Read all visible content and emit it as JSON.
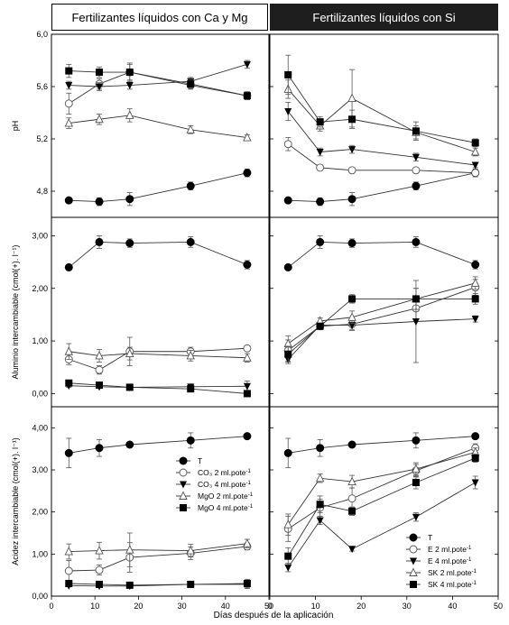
{
  "headers": {
    "left": "Fertilizantes líquidos con Ca y Mg",
    "right": "Fertilizantes líquidos con Si"
  },
  "colors": {
    "ink": "#000000",
    "header_dark": "#1e1e1e",
    "open_marker": "#ffffff"
  },
  "chart_data": [
    {
      "type": "line",
      "panel": "ph-left",
      "ylabel": "pH",
      "xlabel": "",
      "ylim": [
        4.6,
        6.0
      ],
      "xlim": [
        0,
        50
      ],
      "yticks": [
        "4,8",
        "5,2",
        "5,6",
        "6,0"
      ],
      "x": [
        4,
        11,
        18,
        32,
        45
      ],
      "series": [
        {
          "name": "T",
          "marker": "circle-filled",
          "values": [
            4.73,
            4.72,
            4.74,
            4.84,
            4.94
          ],
          "err": [
            0.02,
            0.03,
            0.05,
            0.03,
            0.03
          ]
        },
        {
          "name": "CO3 2 ml.pote-1",
          "marker": "circle-open",
          "values": [
            5.47,
            5.62,
            5.71,
            5.61,
            5.53
          ],
          "err": [
            0.08,
            0.04,
            0.06,
            0.03,
            0.03
          ]
        },
        {
          "name": "CO3 4 ml.pote-1",
          "marker": "triangle-down-filled",
          "values": [
            5.61,
            5.6,
            5.61,
            5.64,
            5.77
          ],
          "err": [
            0.03,
            0.03,
            0.03,
            0.03,
            0.03
          ]
        },
        {
          "name": "MgO 2 ml.pote-1",
          "marker": "triangle-up-open",
          "values": [
            5.32,
            5.35,
            5.38,
            5.27,
            5.21
          ],
          "err": [
            0.04,
            0.04,
            0.05,
            0.03,
            0.02
          ]
        },
        {
          "name": "MgO 4 ml.pote-1",
          "marker": "square-filled",
          "values": [
            5.72,
            5.71,
            5.71,
            5.62,
            5.53
          ],
          "err": [
            0.05,
            0.04,
            0.07,
            0.03,
            0.03
          ]
        }
      ]
    },
    {
      "type": "line",
      "panel": "ph-right",
      "ylabel": "",
      "xlabel": "",
      "ylim": [
        4.6,
        6.0
      ],
      "xlim": [
        0,
        50
      ],
      "x": [
        4,
        11,
        18,
        32,
        45
      ],
      "series": [
        {
          "name": "T",
          "marker": "circle-filled",
          "values": [
            4.73,
            4.72,
            4.74,
            4.84,
            4.94
          ],
          "err": [
            0.02,
            0.03,
            0.05,
            0.03,
            0.03
          ]
        },
        {
          "name": "E 2 ml.pote-1",
          "marker": "circle-open",
          "values": [
            5.16,
            4.98,
            4.96,
            4.96,
            4.94
          ],
          "err": [
            0.05,
            0.02,
            0.02,
            0.02,
            0.02
          ]
        },
        {
          "name": "E 4 ml.pote-1",
          "marker": "triangle-down-filled",
          "values": [
            5.41,
            5.1,
            5.12,
            5.06,
            5.0
          ],
          "err": [
            0.07,
            0.03,
            0.03,
            0.03,
            0.02
          ]
        },
        {
          "name": "SK 2 ml.pote-1",
          "marker": "triangle-up-open",
          "values": [
            5.58,
            5.3,
            5.51,
            5.25,
            5.1
          ],
          "err": [
            0.07,
            0.04,
            0.22,
            0.05,
            0.03
          ]
        },
        {
          "name": "SK 4 ml.pote-1",
          "marker": "square-filled",
          "values": [
            5.69,
            5.33,
            5.35,
            5.26,
            5.17
          ],
          "err": [
            0.15,
            0.04,
            0.07,
            0.07,
            0.03
          ]
        }
      ]
    },
    {
      "type": "line",
      "panel": "al-left",
      "ylabel": "Aluminio intercambiable (cmol(+). l⁻¹)",
      "xlabel": "",
      "ylim": [
        -0.25,
        3.35
      ],
      "xlim": [
        0,
        50
      ],
      "yticks": [
        "0,00",
        "1,00",
        "2,00",
        "3,00"
      ],
      "x": [
        4,
        11,
        18,
        32,
        45
      ],
      "series": [
        {
          "name": "T",
          "marker": "circle-filled",
          "values": [
            2.4,
            2.88,
            2.86,
            2.88,
            2.45
          ],
          "err": [
            0.04,
            0.12,
            0.08,
            0.1,
            0.08
          ]
        },
        {
          "name": "CO3 2 ml.pote-1",
          "marker": "circle-open",
          "values": [
            0.65,
            0.45,
            0.8,
            0.8,
            0.86
          ],
          "err": [
            0.1,
            0.08,
            0.27,
            0.08,
            0.05
          ]
        },
        {
          "name": "CO3 4 ml.pote-1",
          "marker": "triangle-down-filled",
          "values": [
            0.15,
            0.13,
            0.12,
            0.13,
            0.14
          ],
          "err": [
            0.03,
            0.03,
            0.03,
            0.03,
            0.1
          ]
        },
        {
          "name": "MgO 2 ml.pote-1",
          "marker": "triangle-up-open",
          "values": [
            0.8,
            0.72,
            0.76,
            0.72,
            0.68
          ],
          "err": [
            0.15,
            0.12,
            0.12,
            0.1,
            0.08
          ]
        },
        {
          "name": "MgO 4 ml.pote-1",
          "marker": "square-filled",
          "values": [
            0.2,
            0.16,
            0.12,
            0.09,
            0.0
          ],
          "err": [
            0.03,
            0.03,
            0.03,
            0.03,
            0.02
          ]
        }
      ]
    },
    {
      "type": "line",
      "panel": "al-right",
      "ylabel": "",
      "xlabel": "",
      "ylim": [
        -0.25,
        3.35
      ],
      "xlim": [
        0,
        50
      ],
      "x": [
        4,
        11,
        18,
        32,
        45
      ],
      "series": [
        {
          "name": "T",
          "marker": "circle-filled",
          "values": [
            2.4,
            2.88,
            2.86,
            2.88,
            2.45
          ],
          "err": [
            0.04,
            0.12,
            0.08,
            0.1,
            0.08
          ]
        },
        {
          "name": "E 2 ml.pote-1",
          "marker": "circle-open",
          "values": [
            0.82,
            1.28,
            1.32,
            1.62,
            2.02
          ],
          "err": [
            0.2,
            0.06,
            0.1,
            0.2,
            0.15
          ]
        },
        {
          "name": "E 4 ml.pote-1",
          "marker": "triangle-down-filled",
          "values": [
            0.65,
            1.3,
            1.3,
            1.37,
            1.42
          ],
          "err": [
            0.08,
            0.06,
            0.1,
            0.78,
            0.06
          ]
        },
        {
          "name": "SK 2 ml.pote-1",
          "marker": "triangle-up-open",
          "values": [
            0.95,
            1.38,
            1.45,
            1.8,
            2.1
          ],
          "err": [
            0.15,
            0.06,
            0.12,
            0.2,
            0.12
          ]
        },
        {
          "name": "SK 4 ml.pote-1",
          "marker": "square-filled",
          "values": [
            0.75,
            1.28,
            1.8,
            1.8,
            1.8
          ],
          "err": [
            0.15,
            0.06,
            0.08,
            0.2,
            0.1
          ]
        }
      ]
    },
    {
      "type": "line",
      "panel": "acid-left",
      "ylabel": "Acidez intercambiable (cmol(+). l⁻¹)",
      "xlabel": "Días después de la aplicación",
      "ylim": [
        0.0,
        4.5
      ],
      "xlim": [
        0,
        50
      ],
      "yticks": [
        "0,00",
        "1,00",
        "2,00",
        "3,00",
        "4,00"
      ],
      "xticks": [
        "0",
        "10",
        "20",
        "30",
        "40",
        "50"
      ],
      "x": [
        4,
        11,
        18,
        32,
        45
      ],
      "legend": "center-right",
      "series": [
        {
          "name": "T",
          "marker": "circle-filled",
          "values": [
            3.4,
            3.52,
            3.6,
            3.7,
            3.8
          ],
          "err": [
            0.35,
            0.2,
            0.05,
            0.18,
            0.05
          ]
        },
        {
          "name": "CO3 2 ml.pote-1",
          "marker": "circle-open",
          "values": [
            0.6,
            0.62,
            0.92,
            1.02,
            1.18
          ],
          "err": [
            0.25,
            0.12,
            0.35,
            0.15,
            0.08
          ]
        },
        {
          "name": "CO3 4 ml.pote-1",
          "marker": "triangle-down-filled",
          "values": [
            0.25,
            0.24,
            0.24,
            0.28,
            0.28
          ],
          "err": [
            0.03,
            0.03,
            0.03,
            0.05,
            0.1
          ]
        },
        {
          "name": "MgO 2 ml.pote-1",
          "marker": "triangle-up-open",
          "values": [
            1.06,
            1.08,
            1.1,
            1.08,
            1.25
          ],
          "err": [
            0.18,
            0.2,
            0.4,
            0.15,
            0.1
          ]
        },
        {
          "name": "MgO 4 ml.pote-1",
          "marker": "square-filled",
          "values": [
            0.3,
            0.28,
            0.26,
            0.28,
            0.3
          ],
          "err": [
            0.03,
            0.03,
            0.03,
            0.05,
            0.1
          ]
        }
      ]
    },
    {
      "type": "line",
      "panel": "acid-right",
      "ylabel": "",
      "xlabel": "",
      "ylim": [
        0.0,
        4.5
      ],
      "xlim": [
        0,
        50
      ],
      "xticks": [
        "0",
        "10",
        "20",
        "30",
        "40",
        "50"
      ],
      "x": [
        4,
        11,
        18,
        32,
        45
      ],
      "legend": "bottom-right",
      "series": [
        {
          "name": "T",
          "marker": "circle-filled",
          "values": [
            3.4,
            3.52,
            3.6,
            3.7,
            3.8
          ],
          "err": [
            0.35,
            0.2,
            0.05,
            0.18,
            0.05
          ]
        },
        {
          "name": "E 2 ml.pote-1",
          "marker": "circle-open",
          "values": [
            1.6,
            2.1,
            2.32,
            2.98,
            3.52
          ],
          "err": [
            0.3,
            0.2,
            0.25,
            0.15,
            0.1
          ]
        },
        {
          "name": "E 4 ml.pote-1",
          "marker": "triangle-down-filled",
          "values": [
            0.68,
            1.8,
            1.12,
            1.88,
            2.7
          ],
          "err": [
            0.1,
            0.1,
            0.05,
            0.1,
            0.15
          ]
        },
        {
          "name": "SK 2 ml.pote-1",
          "marker": "triangle-up-open",
          "values": [
            1.7,
            2.8,
            2.72,
            3.02,
            3.42
          ],
          "err": [
            0.25,
            0.1,
            0.15,
            0.15,
            0.1
          ]
        },
        {
          "name": "SK 4 ml.pote-1",
          "marker": "square-filled",
          "values": [
            0.95,
            2.18,
            2.02,
            2.7,
            3.28
          ],
          "err": [
            0.2,
            0.2,
            0.1,
            0.15,
            0.1
          ]
        }
      ]
    }
  ],
  "legends": {
    "left": [
      {
        "marker": "circle-filled",
        "label": "T",
        "sup": ""
      },
      {
        "marker": "circle-open",
        "label": "CO₃ 2 ml.pote",
        "sup": "-1"
      },
      {
        "marker": "triangle-down-filled",
        "label": "CO₃ 4 ml.pote",
        "sup": "-1"
      },
      {
        "marker": "triangle-up-open",
        "label": "MgO 2 ml.pote",
        "sup": "-1"
      },
      {
        "marker": "square-filled",
        "label": "MgO 4 ml.pote",
        "sup": "-1"
      }
    ],
    "right": [
      {
        "marker": "circle-filled",
        "label": "T",
        "sup": ""
      },
      {
        "marker": "circle-open",
        "label": "E    2 ml.pote",
        "sup": "-1"
      },
      {
        "marker": "triangle-down-filled",
        "label": "E    4 ml.pote",
        "sup": "-1"
      },
      {
        "marker": "triangle-up-open",
        "label": "SK 2 ml.pote",
        "sup": "-1"
      },
      {
        "marker": "square-filled",
        "label": "SK 4 ml.pote",
        "sup": "-1"
      }
    ]
  }
}
